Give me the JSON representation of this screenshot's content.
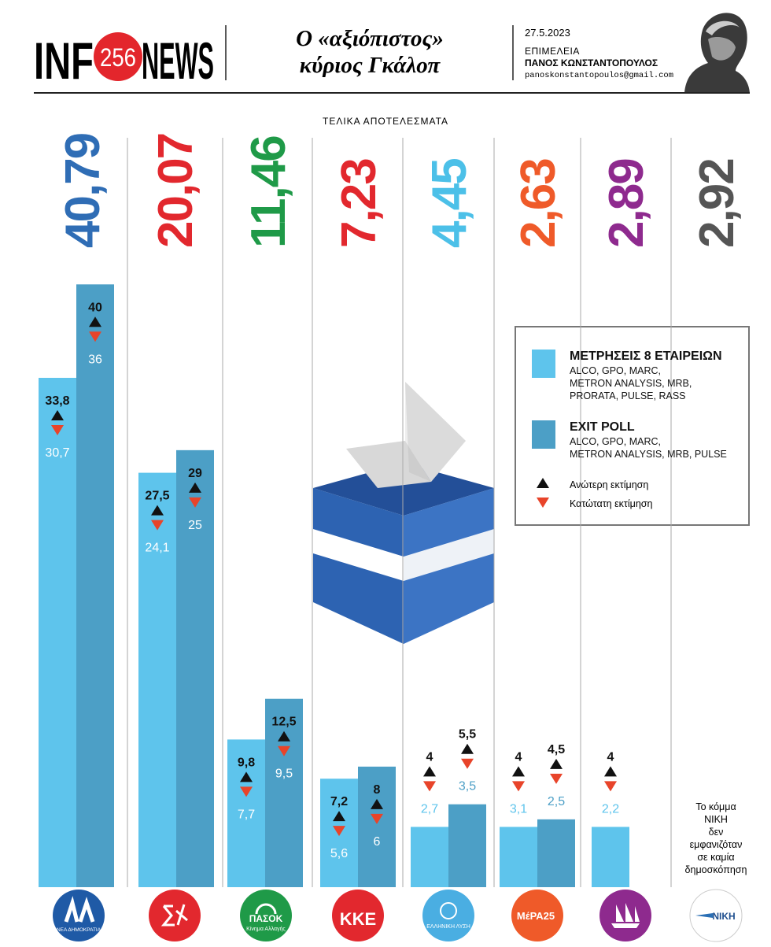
{
  "header": {
    "logo": [
      "INF",
      "256",
      "NEWS"
    ],
    "title_lines": [
      "Ο «αξιόπιστος»",
      "κύριος Γκάλοπ"
    ],
    "date": "27.5.2023",
    "credit_label": "ΕΠΙΜΕΛΕΙΑ",
    "author": "ΠΑΝΟΣ ΚΩΝΣΤΑΝΤΟΠΟΥΛΟΣ",
    "email": "panoskonstantopoulos@gmail.com"
  },
  "chart_data": {
    "type": "bar",
    "subtitle": "ΤΕΛΙΚΑ ΑΠΟΤΕΛΕΣΜΑΤΑ",
    "categories": [
      "ΝΕΑ ΔΗΜΟΚΡΑΤΙΑ",
      null,
      "ΠΑΣΟΚ",
      "ΚΚΕ",
      "ΕΛΛΗΝΙΚΗ ΛΥΣΗ",
      "ΜέΡΑ25",
      null,
      "ΝΙΚΗ"
    ],
    "pasok_tagline": "Κίνημα Αλλαγής",
    "logo_colors": [
      "#1f5aa6",
      "#e2282e",
      "#1f9a48",
      "#e2282e",
      "#4aaee2",
      "#ef5a29",
      "#8e2a8e",
      "#ffffff"
    ],
    "results": {
      "values": [
        40.79,
        20.07,
        11.46,
        7.23,
        4.45,
        2.63,
        2.89,
        2.92
      ],
      "value_labels": [
        "40,79",
        "20,07",
        "11,46",
        "7,23",
        "4,45",
        "2,63",
        "2,89",
        "2,92"
      ],
      "colors": [
        "#2f6db5",
        "#e2282e",
        "#1f9a48",
        "#e2282e",
        "#4cc0e8",
        "#ef5a29",
        "#8e2a8e",
        "#555555"
      ]
    },
    "series": [
      {
        "name": "ΜΕΤΡΗΣΕΙΣ 8 ΕΤΑΙΡΕΙΩΝ",
        "description_lines": [
          "ALCO, GPO, MARC,",
          "METRON ANALYSIS, MRB,",
          "PRORATA, PULSE, RASS"
        ],
        "color": "#5ec4ec",
        "values": [
          33.8,
          27.5,
          9.8,
          7.2,
          4,
          4,
          4,
          null
        ],
        "value_labels": [
          "33,8",
          "27,5",
          "9,8",
          "7,2",
          "4",
          "4",
          "4",
          null
        ],
        "lower": [
          30.7,
          24.1,
          7.7,
          5.6,
          2.7,
          3.1,
          2.2,
          null
        ],
        "lower_labels": [
          "30,7",
          "24,1",
          "7,7",
          "5,6",
          "2,7",
          "3,1",
          "2,2",
          null
        ]
      },
      {
        "name": "EXIT POLL",
        "description_lines": [
          "ALCO, GPO, MARC,",
          "METRON ANALYSIS, MRB, PULSE"
        ],
        "color": "#4c9fc6",
        "values": [
          40,
          29,
          12.5,
          8,
          5.5,
          4.5,
          null,
          null
        ],
        "value_labels": [
          "40",
          "29",
          "12,5",
          "8",
          "5,5",
          "4,5",
          null,
          null
        ],
        "lower": [
          36,
          25,
          9.5,
          6,
          3.5,
          2.5,
          null,
          null
        ],
        "lower_labels": [
          "36",
          "25",
          "9,5",
          "6",
          "3,5",
          "2,5",
          null,
          null
        ]
      }
    ],
    "markers": {
      "upper": "Ανώτερη εκτίμηση",
      "lower": "Κατώτατη εκτίμηση"
    },
    "note_lines": [
      "Το κόμμα",
      "ΝΙΚΗ",
      "δεν",
      "εμφανιζόταν",
      "σε καμία",
      "δημοσκόπηση"
    ],
    "ylim": [
      0,
      42
    ]
  }
}
